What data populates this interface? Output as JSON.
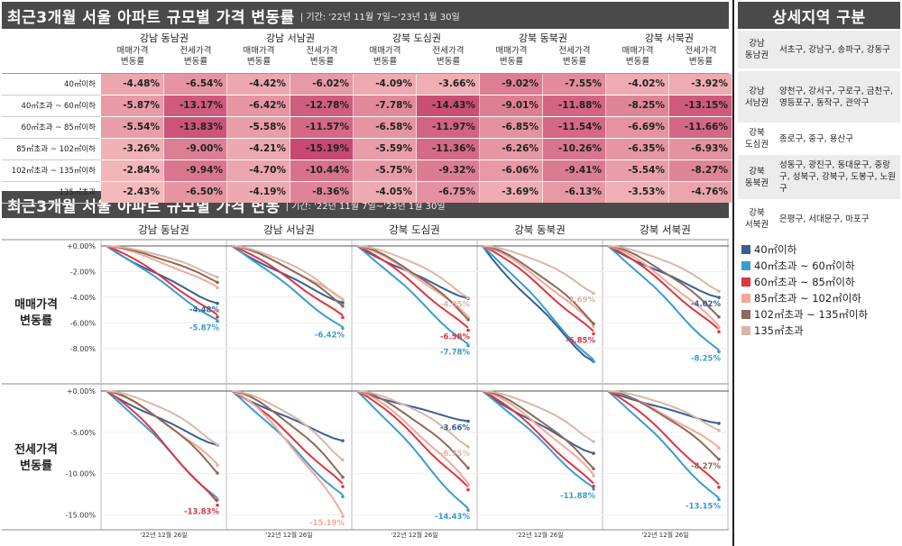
{
  "colors": {
    "s1": "#3a5f93",
    "s2": "#3b9bcf",
    "s3": "#e0343e",
    "s4": "#f5a79a",
    "s5": "#8c6a57",
    "s6": "#d9b7a8"
  },
  "header": {
    "table_title": "최근3개월 서울 아파트 규모별 가격 변동률",
    "table_period": "| 기간: '22년 11월 7일~'23년 1월 30일",
    "chart_title": "최근3개월 서울 아파트 규모별 가격 변동",
    "chart_period": "| 기간: '22년 11월 7일~'23년 1월 30일",
    "side_title": "상세지역 구분"
  },
  "table": {
    "regions": [
      "강남 동남권",
      "강남 서남권",
      "강북 도심권",
      "강북 동북권",
      "강북 서북권"
    ],
    "sub_sale": "매매가격\n변동률",
    "sub_rent": "전세가격\n변동률",
    "rows": [
      {
        "label": "40㎡이하",
        "values": [
          "-4.48%",
          "-6.54%",
          "-4.42%",
          "-6.02%",
          "-4.09%",
          "-3.66%",
          "-9.02%",
          "-7.55%",
          "-4.02%",
          "-3.92%"
        ]
      },
      {
        "label": "40㎡초과 ~ 60㎡이하",
        "values": [
          "-5.87%",
          "-13.17%",
          "-6.42%",
          "-12.78%",
          "-7.78%",
          "-14.43%",
          "-9.01%",
          "-11.88%",
          "-8.25%",
          "-13.15%"
        ]
      },
      {
        "label": "60㎡초과 ~ 85㎡이하",
        "values": [
          "-5.54%",
          "-13.83%",
          "-5.58%",
          "-11.57%",
          "-6.58%",
          "-11.97%",
          "-6.85%",
          "-11.54%",
          "-6.69%",
          "-11.66%"
        ]
      },
      {
        "label": "85㎡초과 ~ 102㎡이하",
        "values": [
          "-3.26%",
          "-9.00%",
          "-4.21%",
          "-15.19%",
          "-5.59%",
          "-11.36%",
          "-6.26%",
          "-10.26%",
          "-6.35%",
          "-6.93%"
        ]
      },
      {
        "label": "102㎡초과 ~ 135㎡이하",
        "values": [
          "-2.84%",
          "-9.94%",
          "-4.70%",
          "-10.44%",
          "-5.75%",
          "-9.32%",
          "-6.06%",
          "-9.41%",
          "-5.54%",
          "-8.27%"
        ]
      },
      {
        "label": "135㎡초과",
        "values": [
          "-2.43%",
          "-6.50%",
          "-4.19%",
          "-8.36%",
          "-4.05%",
          "-6.75%",
          "-3.69%",
          "-6.13%",
          "-3.53%",
          "-4.76%"
        ]
      }
    ]
  },
  "side": {
    "items": [
      {
        "name": "강남\n동남권",
        "value": "서초구, 강남구, 송파구, 강동구"
      },
      {
        "name": "강남\n서남권",
        "value": "양천구, 강서구, 구로구, 금천구, 영등포구, 동작구, 관악구"
      },
      {
        "name": "강북\n도심권",
        "value": "종로구, 중구, 용산구"
      },
      {
        "name": "강북\n동북권",
        "value": "성동구, 광진구, 동대문구, 중랑구, 성북구, 강북구, 도봉구, 노원구"
      },
      {
        "name": "강북\n서북권",
        "value": "은평구, 서대문구, 마포구"
      }
    ]
  },
  "legend": [
    "40㎡이하",
    "40㎡초과 ~ 60㎡이하",
    "60㎡초과 ~ 85㎡이하",
    "85㎡초과 ~ 102㎡이하",
    "102㎡초과 ~ 135㎡이하",
    "135㎡초과"
  ],
  "chart_data": {
    "type": "line",
    "panels_x": [
      "강남 동남권",
      "강남 서남권",
      "강북 도심권",
      "강북 동북권",
      "강북 서북권"
    ],
    "panels_y": [
      "매매가격\n변동률",
      "전세가격\n변동률"
    ],
    "x_tick_label": "'22년 12월 26일",
    "rows": [
      {
        "ylim": [
          -9.0,
          0.0
        ],
        "yticks": [
          "+0.00%",
          "-2.00%",
          "-4.00%",
          "-6.00%",
          "-8.00%"
        ],
        "ytick_values": [
          0,
          -2,
          -4,
          -6,
          -8
        ],
        "labels": [
          [
            {
              "series": 0,
              "text": "-4.48%"
            },
            {
              "series": 1,
              "text": "-5.87%"
            }
          ],
          [
            {
              "series": 1,
              "text": "-6.42%"
            }
          ],
          [
            {
              "series": 5,
              "text": "-4.05%"
            },
            {
              "series": 2,
              "text": "-6.58%"
            },
            {
              "series": 1,
              "text": "-7.78%"
            }
          ],
          [
            {
              "series": 5,
              "text": "-3.69%"
            },
            {
              "series": 2,
              "text": "-6.85%"
            }
          ],
          [
            {
              "series": 0,
              "text": "-4.02%"
            },
            {
              "series": 1,
              "text": "-8.25%"
            }
          ]
        ],
        "finals": [
          [
            -4.48,
            -5.87,
            -5.54,
            -3.26,
            -2.84,
            -2.43
          ],
          [
            -4.42,
            -6.42,
            -5.58,
            -4.21,
            -4.7,
            -4.19
          ],
          [
            -4.09,
            -7.78,
            -6.58,
            -5.59,
            -5.75,
            -4.05
          ],
          [
            -9.02,
            -9.01,
            -6.85,
            -6.26,
            -6.06,
            -3.69
          ],
          [
            -4.02,
            -8.25,
            -6.69,
            -6.35,
            -5.54,
            -3.53
          ]
        ]
      },
      {
        "ylim": [
          -15.5,
          0.0
        ],
        "yticks": [
          "+0.00%",
          "-5.00%",
          "-10.00%",
          "-15.00%"
        ],
        "ytick_values": [
          0,
          -5,
          -10,
          -15
        ],
        "labels": [
          [
            {
              "series": 2,
              "text": "-13.83%"
            }
          ],
          [
            {
              "series": 3,
              "text": "-15.19%"
            }
          ],
          [
            {
              "series": 0,
              "text": "-3.66%"
            },
            {
              "series": 5,
              "text": "-6.75%"
            },
            {
              "series": 1,
              "text": "-14.43%"
            }
          ],
          [
            {
              "series": 1,
              "text": "-11.88%"
            }
          ],
          [
            {
              "series": 4,
              "text": "-8.27%"
            },
            {
              "series": 1,
              "text": "-13.15%"
            }
          ]
        ],
        "finals": [
          [
            -6.54,
            -13.17,
            -13.83,
            -9.0,
            -9.94,
            -6.5
          ],
          [
            -6.02,
            -12.78,
            -11.57,
            -15.19,
            -10.44,
            -8.36
          ],
          [
            -3.66,
            -14.43,
            -11.97,
            -11.36,
            -9.32,
            -6.75
          ],
          [
            -7.55,
            -11.88,
            -11.54,
            -10.26,
            -9.41,
            -6.13
          ],
          [
            -3.92,
            -13.15,
            -11.66,
            -6.93,
            -8.27,
            -4.76
          ]
        ]
      }
    ]
  }
}
